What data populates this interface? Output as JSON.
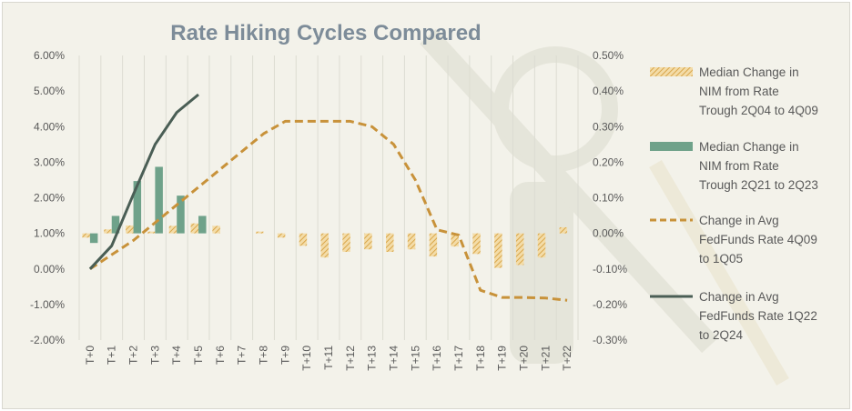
{
  "chart_data": {
    "type": "bar",
    "title": "Rate Hiking Cycles Compared",
    "categories": [
      "T+0",
      "T+1",
      "T+2",
      "T+3",
      "T+4",
      "T+5",
      "T+6",
      "T+7",
      "T+8",
      "T+9",
      "T+10",
      "T+11",
      "T+12",
      "T+13",
      "T+14",
      "T+15",
      "T+16",
      "T+17",
      "T+18",
      "T+19",
      "T+20",
      "T+21",
      "T+22"
    ],
    "left_axis": {
      "ylim": [
        -2.0,
        6.0
      ],
      "ticks": [
        "-2.00%",
        "-1.00%",
        "0.00%",
        "1.00%",
        "2.00%",
        "3.00%",
        "4.00%",
        "5.00%",
        "6.00%"
      ]
    },
    "right_axis": {
      "ylim": [
        -0.3,
        0.5
      ],
      "ticks": [
        "-0.30%",
        "-0.20%",
        "-0.10%",
        "0.00%",
        "0.10%",
        "0.20%",
        "0.30%",
        "0.40%",
        "0.50%"
      ]
    },
    "series": [
      {
        "name": "Median Change in NIM from Rate Trough 2Q04 to 4Q09",
        "type": "bar",
        "axis": "right",
        "pattern": "hatched",
        "color": "#e8b75a",
        "values": [
          -0.012,
          0.011,
          0.022,
          0.005,
          0.021,
          0.028,
          0.021,
          null,
          0.005,
          -0.012,
          -0.035,
          -0.068,
          -0.052,
          -0.045,
          -0.052,
          -0.045,
          -0.065,
          -0.037,
          -0.058,
          -0.097,
          -0.089,
          -0.068,
          0.017
        ]
      },
      {
        "name": "Median Change in NIM from Rate Trough 2Q21 to 2Q23",
        "type": "bar",
        "axis": "right",
        "color": "#6fa28a",
        "values": [
          -0.027,
          0.049,
          0.147,
          0.187,
          0.106,
          0.049,
          null,
          null,
          null,
          null,
          null,
          null,
          null,
          null,
          null,
          null,
          null,
          null,
          null,
          null,
          null,
          null,
          null
        ]
      },
      {
        "name": "Change in Avg FedFunds Rate 4Q09 to 1Q05",
        "type": "line",
        "axis": "left",
        "dashed": true,
        "color": "#c8923a",
        "values": [
          0.0,
          0.4,
          0.8,
          1.3,
          1.8,
          2.3,
          2.8,
          3.3,
          3.8,
          4.15,
          4.15,
          4.15,
          4.15,
          4.0,
          3.5,
          2.5,
          1.1,
          0.95,
          -0.6,
          -0.8,
          -0.8,
          -0.82,
          -0.88
        ]
      },
      {
        "name": "Change in Avg FedFunds Rate 1Q22 to 2Q24",
        "type": "line",
        "axis": "left",
        "color": "#4a5e55",
        "values": [
          0.0,
          0.65,
          2.1,
          3.5,
          4.4,
          4.9,
          null,
          null,
          null,
          null,
          null,
          null,
          null,
          null,
          null,
          null,
          null,
          null,
          null,
          null,
          null,
          null,
          null
        ]
      }
    ],
    "legend_position": "right",
    "grid": "vertical"
  },
  "legend": [
    {
      "lines": [
        "Median Change in",
        "NIM from Rate",
        "Trough 2Q04 to 4Q09"
      ]
    },
    {
      "lines": [
        "Median Change in",
        "NIM from Rate",
        "Trough 2Q21 to 2Q23"
      ]
    },
    {
      "lines": [
        "Change in Avg",
        "FedFunds Rate 4Q09",
        "to 1Q05"
      ]
    },
    {
      "lines": [
        "Change in Avg",
        "FedFunds Rate 1Q22",
        "to 2Q24"
      ]
    }
  ]
}
